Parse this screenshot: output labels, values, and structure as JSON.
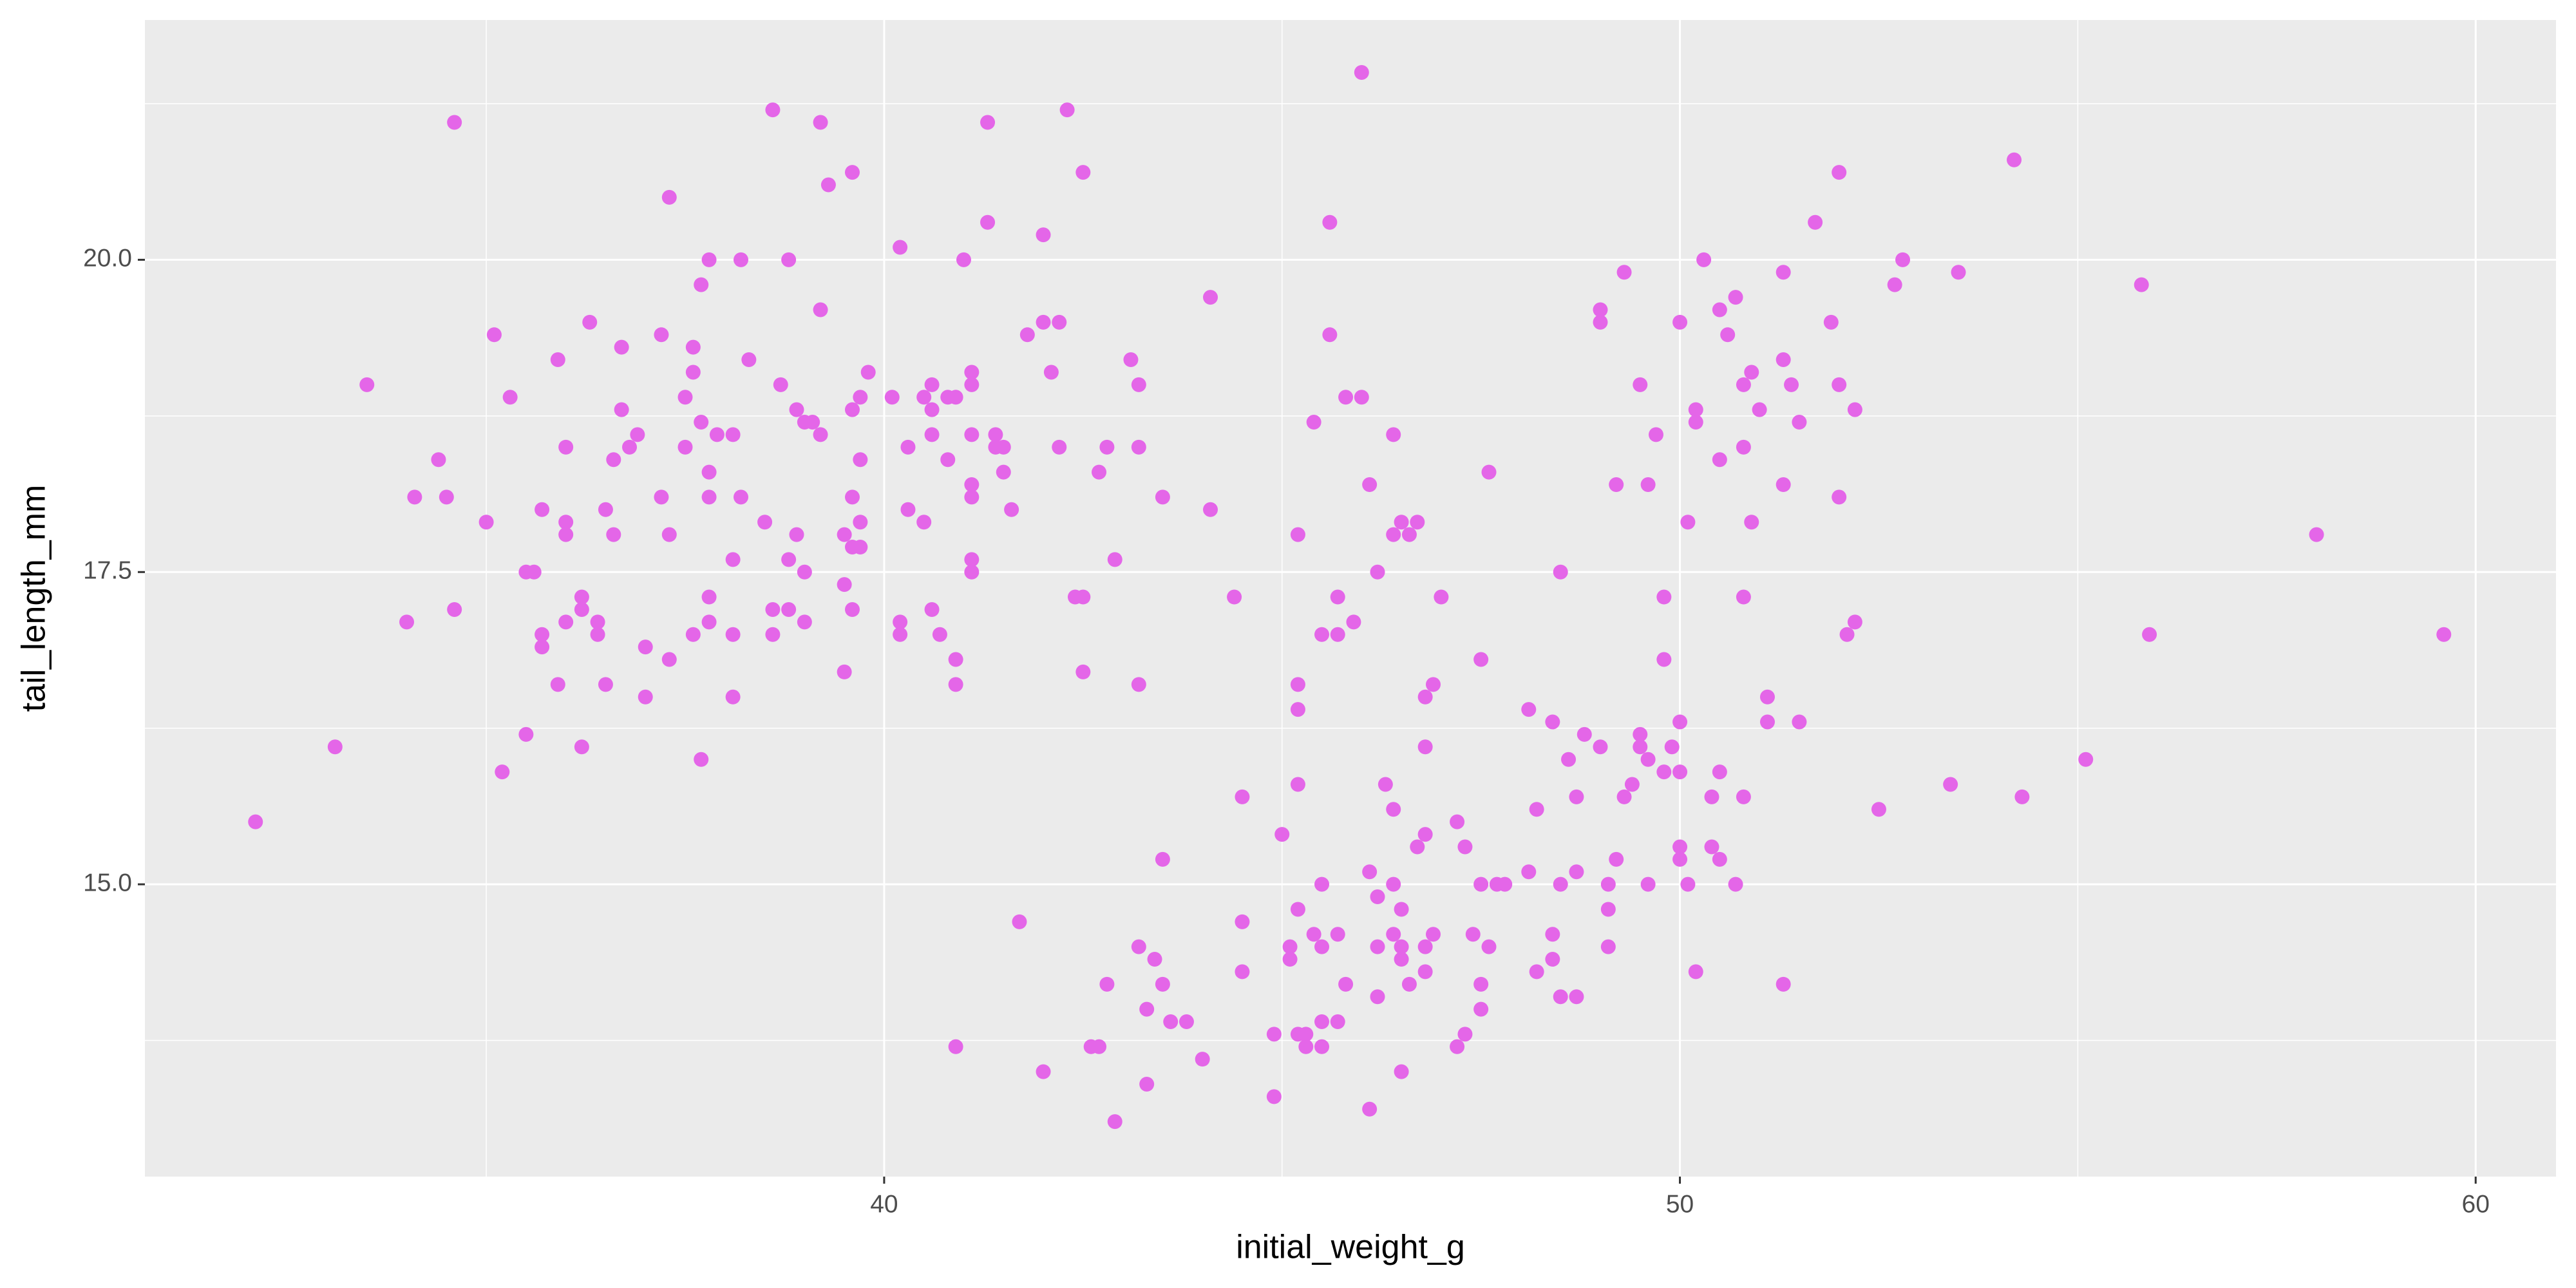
{
  "chart_data": {
    "type": "scatter",
    "x_label": "initial_weight_g",
    "y_label": "tail_length_mm",
    "color": "#e466e8",
    "grid": true,
    "xlim": [
      30.71,
      61.01
    ],
    "ylim": [
      12.66,
      21.92
    ],
    "xticks": [
      40,
      50,
      60
    ],
    "yticks": [
      {
        "value": 15,
        "label": "15.0"
      },
      17.5,
      {
        "value": 20,
        "label": "20.0"
      }
    ],
    "x_minor_ticks": [
      35,
      45,
      55
    ],
    "y_minor_ticks": [
      13.75,
      16.25,
      18.75,
      21.25
    ],
    "x": [
      32.1,
      33.1,
      33.5,
      34.0,
      34.1,
      34.4,
      34.5,
      34.6,
      34.6,
      35.0,
      35.1,
      35.2,
      35.3,
      35.5,
      35.5,
      35.6,
      35.7,
      35.7,
      35.7,
      35.9,
      35.9,
      36.0,
      36.0,
      36.0,
      36.0,
      36.2,
      36.2,
      36.2,
      36.3,
      36.4,
      36.4,
      36.5,
      36.5,
      36.6,
      36.6,
      36.7,
      36.7,
      36.8,
      36.9,
      37.0,
      37.0,
      37.2,
      37.2,
      37.3,
      37.3,
      37.3,
      37.5,
      37.5,
      37.6,
      37.6,
      37.6,
      37.7,
      37.7,
      37.7,
      37.8,
      37.8,
      37.8,
      37.8,
      37.8,
      37.9,
      38.1,
      38.1,
      38.1,
      38.1,
      38.2,
      38.2,
      38.3,
      38.5,
      38.6,
      38.6,
      38.6,
      38.7,
      38.8,
      38.8,
      38.8,
      38.9,
      38.9,
      39.0,
      39.0,
      39.0,
      39.1,
      39.2,
      39.2,
      39.2,
      39.3,
      39.5,
      39.5,
      39.5,
      39.6,
      39.6,
      39.6,
      39.6,
      39.6,
      39.7,
      39.7,
      39.7,
      39.7,
      39.8,
      40.1,
      40.2,
      40.2,
      40.2,
      40.3,
      40.3,
      40.5,
      40.5,
      40.6,
      40.6,
      40.6,
      40.6,
      40.7,
      40.8,
      40.8,
      40.9,
      40.9,
      40.9,
      40.9,
      41.0,
      41.1,
      41.1,
      41.1,
      41.1,
      41.1,
      41.1,
      41.1,
      41.3,
      41.3,
      41.4,
      41.4,
      41.5,
      41.5,
      41.6,
      41.7,
      41.8,
      42.0,
      42.0,
      42.0,
      42.1,
      42.2,
      42.2,
      42.3,
      42.4,
      42.5,
      42.5,
      42.5,
      42.6,
      42.7,
      42.7,
      42.8,
      42.8,
      42.9,
      42.9,
      43.1,
      43.2,
      43.2,
      43.2,
      43.2,
      43.3,
      43.3,
      43.4,
      43.5,
      43.5,
      43.5,
      43.6,
      43.8,
      44.0,
      44.1,
      44.1,
      44.4,
      44.5,
      44.5,
      44.5,
      44.9,
      44.9,
      45.0,
      45.1,
      45.1,
      45.2,
      45.2,
      45.2,
      45.2,
      45.2,
      45.2,
      45.3,
      45.3,
      45.4,
      45.4,
      45.5,
      45.5,
      45.5,
      45.5,
      45.5,
      45.6,
      45.6,
      45.7,
      45.7,
      45.7,
      45.7,
      45.8,
      45.8,
      45.9,
      46.0,
      46.0,
      46.1,
      46.1,
      46.1,
      46.2,
      46.2,
      46.2,
      46.2,
      46.3,
      46.4,
      46.4,
      46.4,
      46.4,
      46.4,
      46.5,
      46.5,
      46.5,
      46.5,
      46.5,
      46.6,
      46.6,
      46.7,
      46.7,
      46.8,
      46.8,
      46.8,
      46.8,
      46.8,
      46.9,
      46.9,
      47.0,
      47.2,
      47.2,
      47.3,
      47.3,
      47.4,
      47.5,
      47.5,
      47.5,
      47.5,
      47.6,
      47.6,
      47.7,
      47.8,
      48.1,
      48.1,
      48.2,
      48.2,
      48.4,
      48.4,
      48.4,
      48.5,
      48.5,
      48.5,
      48.6,
      48.7,
      48.7,
      48.7,
      48.8,
      49.0,
      49.0,
      49.0,
      49.1,
      49.1,
      49.1,
      49.2,
      49.2,
      49.3,
      49.3,
      49.4,
      49.5,
      49.5,
      49.5,
      49.6,
      49.6,
      49.6,
      49.7,
      49.8,
      49.8,
      49.8,
      49.9,
      50.0,
      50.0,
      50.0,
      50.0,
      50.0,
      50.1,
      50.1,
      50.2,
      50.2,
      50.2,
      50.3,
      50.4,
      50.4,
      50.5,
      50.5,
      50.5,
      50.5,
      50.6,
      50.7,
      50.7,
      50.8,
      50.8,
      50.8,
      50.8,
      50.9,
      50.9,
      51.0,
      51.1,
      51.1,
      51.3,
      51.3,
      51.3,
      51.3,
      51.4,
      51.5,
      51.5,
      51.7,
      51.9,
      52.0,
      52.0,
      52.0,
      52.1,
      52.2,
      52.2,
      52.5,
      52.7,
      52.8,
      53.4,
      53.5,
      54.2,
      54.3,
      55.1,
      55.8,
      55.9,
      58.0,
      59.6
    ],
    "values": [
      15.5,
      16.1,
      19.0,
      17.1,
      18.1,
      18.4,
      18.1,
      21.1,
      17.2,
      17.9,
      19.4,
      15.9,
      18.9,
      16.2,
      17.5,
      17.5,
      18.0,
      17.0,
      16.9,
      19.2,
      16.6,
      18.5,
      17.9,
      17.8,
      17.1,
      16.1,
      17.3,
      17.2,
      19.5,
      17.1,
      17.0,
      18.0,
      16.6,
      18.4,
      17.8,
      19.3,
      18.8,
      18.5,
      18.6,
      16.5,
      16.9,
      19.4,
      18.1,
      20.5,
      17.8,
      16.8,
      18.9,
      18.5,
      19.3,
      19.1,
      17.0,
      19.8,
      18.7,
      16.0,
      20.0,
      18.3,
      18.1,
      17.3,
      17.1,
      18.6,
      18.6,
      17.6,
      17.0,
      16.5,
      20.0,
      18.1,
      19.2,
      17.9,
      21.2,
      17.2,
      17.0,
      19.0,
      20.0,
      17.6,
      17.2,
      18.8,
      17.8,
      17.5,
      17.1,
      18.7,
      18.7,
      19.6,
      18.6,
      21.1,
      20.6,
      17.8,
      17.4,
      16.7,
      20.7,
      18.8,
      18.1,
      17.7,
      17.2,
      18.9,
      18.4,
      17.9,
      17.7,
      19.1,
      18.9,
      20.1,
      17.1,
      17.0,
      18.5,
      18.0,
      17.9,
      18.9,
      19.0,
      18.8,
      18.6,
      17.2,
      17.0,
      18.9,
      18.4,
      18.9,
      16.8,
      16.6,
      13.7,
      20.0,
      19.1,
      19.0,
      18.6,
      18.2,
      18.1,
      17.6,
      17.5,
      21.1,
      20.3,
      18.6,
      18.5,
      18.5,
      18.3,
      18.0,
      14.7,
      19.4,
      20.2,
      19.5,
      13.5,
      19.1,
      19.5,
      18.5,
      21.2,
      17.3,
      20.7,
      17.3,
      16.7,
      13.7,
      18.3,
      13.7,
      18.5,
      14.2,
      17.6,
      13.1,
      19.2,
      19.0,
      18.5,
      16.6,
      14.5,
      14.0,
      13.4,
      14.4,
      18.1,
      15.2,
      14.2,
      13.9,
      13.9,
      13.6,
      19.7,
      18.0,
      17.3,
      15.7,
      14.7,
      14.3,
      13.8,
      13.3,
      15.4,
      14.5,
      14.4,
      17.8,
      16.6,
      16.4,
      15.8,
      14.8,
      13.8,
      13.7,
      13.8,
      14.6,
      18.7,
      17.0,
      15.0,
      14.5,
      13.9,
      13.7,
      20.3,
      19.4,
      17.0,
      17.3,
      14.6,
      13.9,
      18.9,
      14.2,
      17.1,
      21.5,
      18.9,
      18.2,
      15.1,
      13.2,
      17.5,
      14.9,
      14.5,
      14.1,
      15.8,
      18.6,
      17.8,
      15.6,
      15.0,
      14.6,
      17.9,
      14.8,
      14.5,
      14.4,
      13.5,
      17.8,
      14.2,
      15.3,
      17.9,
      16.5,
      16.1,
      15.4,
      14.5,
      14.3,
      16.6,
      14.6,
      17.3,
      15.5,
      13.7,
      15.3,
      13.8,
      14.6,
      16.8,
      15.0,
      14.2,
      14.0,
      18.3,
      14.5,
      15.0,
      15.0,
      15.1,
      16.4,
      15.6,
      14.3,
      16.3,
      14.6,
      14.4,
      17.5,
      15.0,
      14.1,
      16.0,
      15.7,
      15.1,
      14.1,
      16.2,
      19.6,
      19.5,
      16.1,
      15.0,
      14.8,
      14.5,
      18.2,
      15.2,
      19.9,
      15.7,
      15.8,
      19.0,
      16.2,
      16.1,
      18.2,
      16.0,
      15.0,
      18.6,
      17.3,
      16.8,
      15.9,
      16.1,
      19.5,
      16.3,
      15.9,
      15.3,
      15.2,
      17.9,
      15.0,
      18.8,
      18.7,
      14.3,
      20.0,
      15.7,
      15.3,
      19.6,
      18.4,
      15.9,
      15.2,
      19.4,
      19.7,
      15.0,
      19.0,
      18.5,
      17.3,
      15.7,
      19.1,
      17.9,
      18.8,
      16.5,
      16.3,
      19.9,
      19.2,
      18.2,
      14.2,
      19.0,
      18.7,
      16.3,
      20.3,
      19.5,
      20.7,
      19.0,
      18.1,
      17.0,
      18.8,
      17.1,
      15.6,
      19.8,
      20.0,
      15.8,
      19.9,
      20.8,
      15.7,
      16.0,
      19.8,
      17.0,
      17.8,
      17.0
    ]
  }
}
